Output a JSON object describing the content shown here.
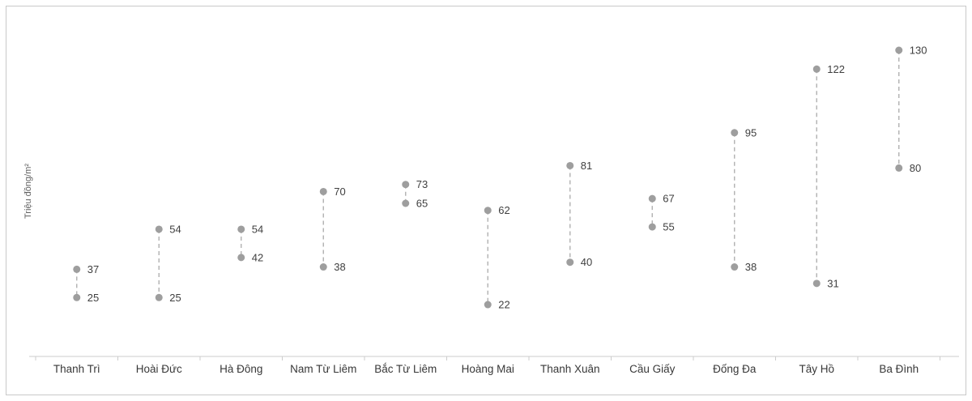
{
  "chart_data": {
    "type": "dumbbell",
    "title": "",
    "ylabel": "Triệu đồng/m²",
    "xlabel": "",
    "ylim": [
      0,
      130
    ],
    "grid": false,
    "legend": "none",
    "categories": [
      "Thanh Trì",
      "Hoài Đức",
      "Hà Đông",
      "Nam Từ Liêm",
      "Bắc Từ Liêm",
      "Hoàng Mai",
      "Thanh Xuân",
      "Cầu Giấy",
      "Đống Đa",
      "Tây Hồ",
      "Ba Đình"
    ],
    "series": [
      {
        "name": "min",
        "values": [
          25,
          25,
          42,
          38,
          65,
          22,
          40,
          55,
          38,
          31,
          80
        ]
      },
      {
        "name": "max",
        "values": [
          37,
          54,
          54,
          70,
          73,
          62,
          81,
          67,
          95,
          122,
          130
        ]
      }
    ],
    "colors": {
      "dot": "#9e9e9e",
      "range_line": "#b0b0b0",
      "axis": "#cccccc",
      "value_label": "#3f3f3f",
      "category_label": "#383838"
    }
  }
}
